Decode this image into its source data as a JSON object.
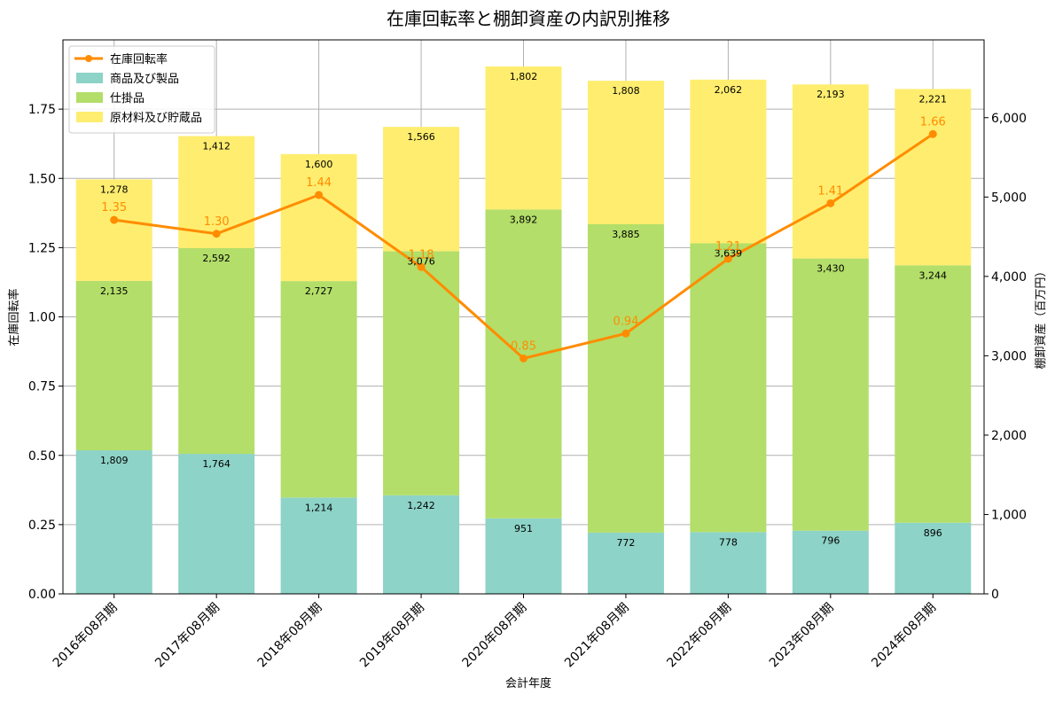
{
  "chart_data": {
    "type": "bar",
    "title": "在庫回転率と棚卸資産の内訳別推移",
    "xlabel": "会計年度",
    "ylabel_left": "在庫回転率",
    "ylabel_right": "棚卸資産（百万円）",
    "categories": [
      "2016年08月期",
      "2017年08月期",
      "2018年08月期",
      "2019年08月期",
      "2020年08月期",
      "2021年08月期",
      "2022年08月期",
      "2023年08月期",
      "2024年08月期"
    ],
    "bar_axis": "right",
    "stacked": true,
    "series": [
      {
        "name": "商品及び製品",
        "color": "#8dd3c7",
        "values": [
          1809,
          1764,
          1214,
          1242,
          951,
          772,
          778,
          796,
          896
        ]
      },
      {
        "name": "仕掛品",
        "color": "#b3de69",
        "values": [
          2135,
          2592,
          2727,
          3076,
          3892,
          3885,
          3639,
          3430,
          3244
        ]
      },
      {
        "name": "原材料及び貯蔵品",
        "color": "#ffed6f",
        "values": [
          1278,
          1412,
          1600,
          1566,
          1802,
          1808,
          2062,
          2193,
          2221
        ]
      }
    ],
    "line_series": {
      "name": "在庫回転率",
      "color": "#ff8c00",
      "axis": "left",
      "values": [
        1.35,
        1.3,
        1.44,
        1.18,
        0.85,
        0.94,
        1.21,
        1.41,
        1.66
      ],
      "labels": [
        "1.35",
        "1.30",
        "1.44",
        "1.18",
        "0.85",
        "0.94",
        "1.21",
        "1.41",
        "1.66"
      ]
    },
    "y_left": {
      "min": 0,
      "max": 2.0,
      "ticks": [
        0.0,
        0.25,
        0.5,
        0.75,
        1.0,
        1.25,
        1.5,
        1.75
      ],
      "tick_labels": [
        "0.00",
        "0.25",
        "0.50",
        "0.75",
        "1.00",
        "1.25",
        "1.50",
        "1.75"
      ]
    },
    "y_right": {
      "min": 0,
      "max": 6980,
      "ticks": [
        0,
        1000,
        2000,
        3000,
        4000,
        5000,
        6000
      ],
      "tick_labels": [
        "0",
        "1,000",
        "2,000",
        "3,000",
        "4,000",
        "5,000",
        "6,000"
      ]
    },
    "grid": true,
    "legend_position": "top-left"
  }
}
